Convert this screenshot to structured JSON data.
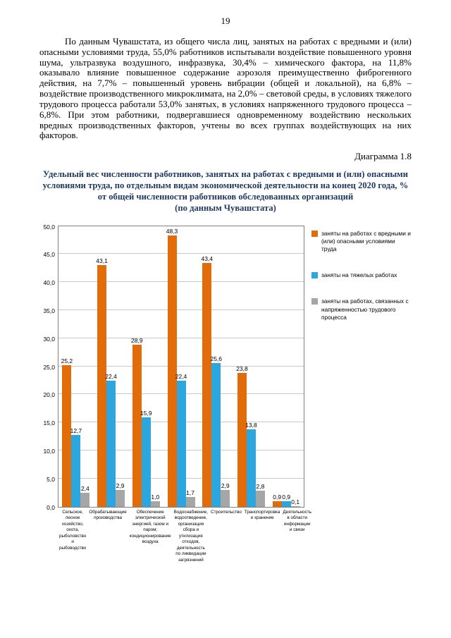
{
  "page": {
    "number": "19",
    "paragraph": "По данным Чувашстата, из общего числа лиц, занятых на работах с вредными и (или) опасными условиями труда, 55,0% работников испытывали воздействие повышенного уровня шума, ультразвука воздушного, инфразвука, 30,4% – химического фактора, на 11,8% оказывало влияние повышенное содержание аэрозоля преимущественно фиброгенного действия, на 7,7% – повышенный уровень вибрации (общей и локальной), на 6,8% – воздействие производственного микроклимата, на 2,0% – световой среды, в условиях тяжелого трудового процесса работали 53,0% занятых, в условиях напряженного трудового процесса – 6,8%. При этом работники, подвергавшиеся одновременному воздействию нескольких вредных производственных факторов, учтены во всех группах воздействующих на них факторов.",
    "diagram_label": "Диаграмма 1.8"
  },
  "chart_data": {
    "type": "bar",
    "title": "Удельный вес численности работников, занятых на работах с вредными и (или) опасными условиями труда, по отдельным видам экономической деятельности на конец 2020 года, % от общей численности работников обследованных организаций",
    "subtitle": "(по данным Чувашстата)",
    "categories": [
      "Сельское, лесное хозяйство, охота, рыболовство и рыбоводство",
      "Обрабатывающие производства",
      "Обеспечение электрической энергией, газом и паром; кондиционирование воздуха",
      "Водоснабжение, водоотведение, организация сбора и утилизация отходов, деятельность по ликвидации загрязнений",
      "Строительство",
      "Транспортировка и хранение",
      "Деятельность в области информации и связи"
    ],
    "series": [
      {
        "name": "заняты на работах с вредными и (или) опасными условиями труда",
        "color": "#E36C0A",
        "values": [
          25.2,
          43.1,
          28.9,
          48.3,
          43.4,
          23.8,
          0.9
        ]
      },
      {
        "name": "заняты на тяжелых работах",
        "color": "#2BA6DE",
        "values": [
          12.7,
          22.4,
          15.9,
          22.4,
          25.6,
          13.8,
          0.9
        ]
      },
      {
        "name": "заняты на работах, связанных с напряженностью трудового процесса",
        "color": "#A6A6A6",
        "values": [
          2.4,
          2.9,
          1.0,
          1.7,
          2.9,
          2.8,
          0.1
        ]
      }
    ],
    "ylim": [
      0,
      50
    ],
    "ytick_step": 5,
    "grid": true,
    "legend_position": "right"
  }
}
